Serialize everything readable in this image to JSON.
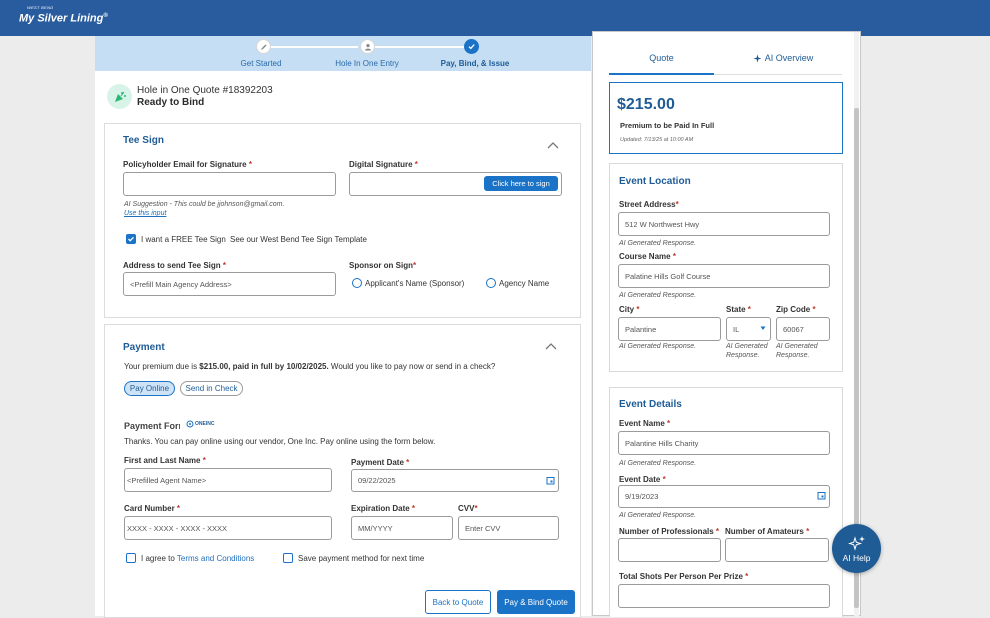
{
  "brand": {
    "small": "WEST BEND",
    "name": "My Silver Lining",
    "mark": "®"
  },
  "steps": [
    {
      "label": "Get Started"
    },
    {
      "label": "Hole In One Entry"
    },
    {
      "label": "Pay, Bind, & Issue"
    }
  ],
  "quote": {
    "title": "Hole in One Quote #18392203",
    "status": "Ready to Bind"
  },
  "tee_sign": {
    "title": "Tee Sign",
    "email_label": "Policyholder Email for Signature",
    "signature_label": "Digital Signature",
    "sign_button": "Click here to sign",
    "ai_suggestion": "AI Suggestion - This could be jjohnson@gmail.com.",
    "use_input": "Use this input",
    "free_sign_label": "I want a FREE Tee Sign",
    "template_link": "See our West Bend Tee Sign Template",
    "address_label": "Address to send Tee Sign",
    "address_placeholder": "<Prefill Main Agency Address>",
    "sponsor_label": "Sponsor on Sign",
    "sponsor_option1": "Applicant's Name (Sponsor)",
    "sponsor_option2": "Agency Name"
  },
  "payment": {
    "title": "Payment",
    "due_prefix": "Your premium due is ",
    "due_bold": "$215.00, paid in full by 10/02/2025.",
    "due_suffix": " Would you like to pay now or send in a check?",
    "pay_online": "Pay Online",
    "send_check": "Send in Check",
    "form_title": "Payment Form",
    "vendor_logo": "ONEINC",
    "thanks": "Thanks. You can pay online using our vendor, One Inc. Pay online using the form below.",
    "name_label": "First and Last Name",
    "name_value": "<Prefilled Agent Name>",
    "date_label": "Payment Date",
    "date_value": "09/22/2025",
    "card_label": "Card Number",
    "card_placeholder": "XXXX - XXXX - XXXX - XXXX",
    "exp_label": "Expiration Date",
    "exp_placeholder": "MM/YYYY",
    "cvv_label": "CVV",
    "cvv_placeholder": "Enter CVV",
    "agree_prefix": "I agree to ",
    "agree_link": "Terms and Conditions",
    "save_method": "Save payment method for next time"
  },
  "actions": {
    "back": "Back to Quote",
    "bind": "Pay & Bind Quote"
  },
  "right": {
    "tabs": [
      "Quote",
      "AI Overview"
    ],
    "price": "$215.00",
    "price_caption": "Premium to be Paid In Full",
    "updated": "Updated: 7/13/25 at 10:00 AM",
    "ai_response": "AI Generated Response.",
    "location": {
      "title": "Event Location",
      "street_label": "Street Address",
      "street_value": "512 W Northwest Hwy",
      "course_label": "Course Name",
      "course_value": "Palatine Hills Golf Course",
      "city_label": "City",
      "city_value": "Palantine",
      "state_label": "State",
      "state_value": "IL",
      "zip_label": "Zip Code",
      "zip_value": "60067"
    },
    "details": {
      "title": "Event Details",
      "name_label": "Event Name",
      "name_value": "Palantine Hills Charity",
      "date_label": "Event Date",
      "date_value": "9/19/2023",
      "pros_label": "Number of Professionals",
      "amateurs_label": "Number of Amateurs",
      "shots_label": "Total Shots Per Person Per Prize"
    }
  },
  "ai_help": "AI Help",
  "colors": {
    "header": "#285c9f",
    "accent": "#1a73c7",
    "step_bar": "#c5def3"
  }
}
